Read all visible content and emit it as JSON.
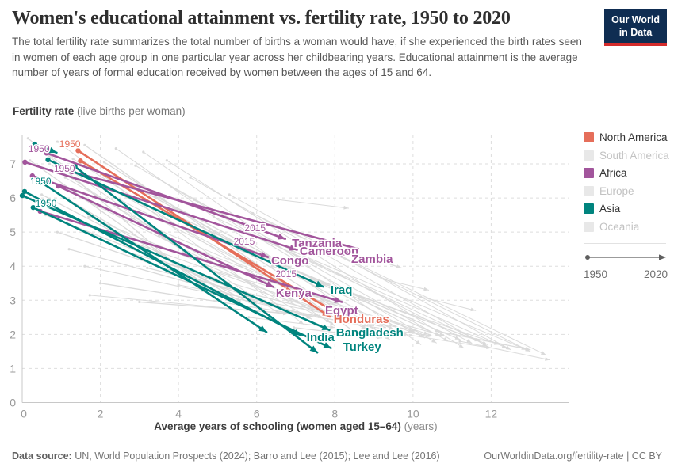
{
  "header": {
    "title": "Women's educational attainment vs. fertility rate, 1950 to 2020",
    "subtitle": "The total fertility rate summarizes the total number of births a woman would have, if she experienced the birth rates seen in women of each age group in one particular year across her childbearing years. Educational attainment is the average number of years of formal education received by women between the ages of 15 and 64.",
    "logo_line1": "Our World",
    "logo_line2": "in Data"
  },
  "palette": {
    "north_america": "#e56e5a",
    "africa": "#a2559c",
    "asia": "#00847e",
    "inactive_swatch": "#e8e8e8",
    "inactive_text": "#c2c2c2",
    "active_text": "#333333",
    "trail": "#dadada",
    "grid": "#dedede",
    "axis_line": "#c8c8c8",
    "axis_text": "#999999",
    "timeline": "#5f5f5f"
  },
  "legend": {
    "items": [
      {
        "label": "North America",
        "region": "north_america",
        "active": true
      },
      {
        "label": "South America",
        "region": "inactive",
        "active": false
      },
      {
        "label": "Africa",
        "region": "africa",
        "active": true
      },
      {
        "label": "Europe",
        "region": "inactive",
        "active": false
      },
      {
        "label": "Asia",
        "region": "asia",
        "active": true
      },
      {
        "label": "Oceania",
        "region": "inactive",
        "active": false
      }
    ],
    "timeline_start": "1950",
    "timeline_end": "2020"
  },
  "chart_data": {
    "type": "scatter",
    "title": "Women's educational attainment vs. fertility rate, 1950 to 2020",
    "ylabel": "Fertility rate",
    "ylabel_note": "(live births per woman)",
    "xlabel": "Average years of schooling (women aged 15–64)",
    "xlabel_note": "(years)",
    "xlim": [
      0,
      14
    ],
    "ylim": [
      0,
      7.86
    ],
    "xticks": [
      0,
      2,
      4,
      6,
      8,
      10,
      12
    ],
    "yticks": [
      0,
      1,
      2,
      3,
      4,
      5,
      6,
      7
    ],
    "grid": "dashed",
    "legend_position": "right",
    "series": [
      {
        "name": "Honduras",
        "region": "north_america",
        "points": [
          [
            1.43,
            7.39
          ],
          [
            7.87,
            2.52
          ]
        ]
      },
      {
        "name": "North America (unlabeled)",
        "region": "north_america",
        "points": [
          [
            1.49,
            7.09
          ],
          [
            8.05,
            2.62
          ],
          [
            7.99,
            2.33
          ]
        ]
      },
      {
        "name": "Tanzania",
        "region": "africa",
        "points": [
          [
            0.62,
            7.32
          ],
          [
            6.73,
            4.8
          ]
        ]
      },
      {
        "name": "Cameroon",
        "region": "africa",
        "points": [
          [
            0.07,
            7.05
          ],
          [
            7.03,
            4.48
          ]
        ]
      },
      {
        "name": "Zambia",
        "region": "africa",
        "points": [
          [
            1.27,
            6.77
          ],
          [
            8.55,
            4.52
          ],
          [
            8.16,
            4.32
          ]
        ]
      },
      {
        "name": "Congo",
        "region": "africa",
        "points": [
          [
            0.26,
            6.65
          ],
          [
            6.29,
            4.27
          ]
        ]
      },
      {
        "name": "Kenya",
        "region": "africa",
        "points": [
          [
            0.92,
            6.35
          ],
          [
            6.43,
            3.39
          ]
        ]
      },
      {
        "name": "Egypt",
        "region": "africa",
        "points": [
          [
            0.46,
            5.61
          ],
          [
            8.18,
            2.95
          ]
        ]
      },
      {
        "name": "Asia (stub)",
        "region": "asia",
        "points": [
          [
            0.32,
            7.58
          ],
          [
            0.88,
            7.33
          ]
        ]
      },
      {
        "name": "Iraq",
        "region": "asia",
        "points": [
          [
            0.66,
            7.12
          ],
          [
            7.7,
            3.4
          ]
        ]
      },
      {
        "name": "India",
        "region": "asia",
        "points": [
          [
            0.06,
            6.19
          ],
          [
            7.13,
            1.97
          ]
        ]
      },
      {
        "name": "Bangladesh",
        "region": "asia",
        "points": [
          [
            0.0,
            6.07
          ],
          [
            7.86,
            2.13
          ]
        ]
      },
      {
        "name": "Turkey",
        "region": "asia",
        "points": [
          [
            0.28,
            5.72
          ],
          [
            7.9,
            1.6
          ]
        ]
      },
      {
        "name": "Asia (unlabeled a)",
        "region": "asia",
        "points": [
          [
            1.35,
            6.92
          ],
          [
            7.55,
            1.47
          ]
        ]
      },
      {
        "name": "Asia (unlabeled b)",
        "region": "asia",
        "points": [
          [
            0.5,
            6.45
          ],
          [
            6.25,
            2.07
          ]
        ]
      }
    ],
    "country_labels": [
      {
        "text": "Tanzania",
        "region": "africa",
        "x": 6.9,
        "y": 4.68
      },
      {
        "text": "Cameroon",
        "region": "africa",
        "x": 7.1,
        "y": 4.45
      },
      {
        "text": "Zambia",
        "region": "africa",
        "x": 8.42,
        "y": 4.21
      },
      {
        "text": "Congo",
        "region": "africa",
        "x": 6.37,
        "y": 4.17
      },
      {
        "text": "Kenya",
        "region": "africa",
        "x": 6.49,
        "y": 3.22
      },
      {
        "text": "Iraq",
        "region": "asia",
        "x": 7.89,
        "y": 3.31
      },
      {
        "text": "Egypt",
        "region": "africa",
        "x": 7.75,
        "y": 2.71
      },
      {
        "text": "Honduras",
        "region": "north_america",
        "x": 7.97,
        "y": 2.45
      },
      {
        "text": "India",
        "region": "asia",
        "x": 7.28,
        "y": 1.92
      },
      {
        "text": "Bangladesh",
        "region": "asia",
        "x": 8.03,
        "y": 2.05
      },
      {
        "text": "Turkey",
        "region": "asia",
        "x": 8.21,
        "y": 1.64
      }
    ],
    "year_labels": [
      {
        "text": "1950",
        "region": "africa",
        "x": 0.43,
        "y": 7.44
      },
      {
        "text": "1950",
        "region": "north_america",
        "x": 1.22,
        "y": 7.58
      },
      {
        "text": "1950",
        "region": "africa",
        "x": 1.08,
        "y": 6.86
      },
      {
        "text": "1950",
        "region": "asia",
        "x": 0.47,
        "y": 6.49
      },
      {
        "text": "1950",
        "region": "asia",
        "x": 0.61,
        "y": 5.84
      },
      {
        "text": "2015",
        "region": "africa",
        "x": 5.96,
        "y": 5.12
      },
      {
        "text": "2015",
        "region": "africa",
        "x": 5.68,
        "y": 4.72
      },
      {
        "text": "2015",
        "region": "africa",
        "x": 6.75,
        "y": 3.77
      }
    ],
    "background_trails": [
      [
        0.15,
        7.75,
        4.6,
        3.4
      ],
      [
        0.4,
        7.5,
        6.0,
        2.9
      ],
      [
        0.9,
        7.65,
        7.2,
        2.3
      ],
      [
        1.6,
        7.55,
        8.6,
        2.0
      ],
      [
        2.4,
        7.45,
        9.4,
        1.85
      ],
      [
        3.1,
        7.35,
        10.2,
        1.7
      ],
      [
        0.2,
        7.1,
        5.0,
        3.2
      ],
      [
        0.7,
        7.0,
        6.6,
        2.6
      ],
      [
        1.3,
        7.15,
        8.0,
        2.25
      ],
      [
        2.1,
        7.05,
        9.0,
        2.05
      ],
      [
        2.9,
        6.95,
        10.6,
        1.75
      ],
      [
        3.7,
        7.1,
        11.3,
        1.6
      ],
      [
        0.3,
        6.55,
        5.6,
        2.95
      ],
      [
        1.1,
        6.6,
        7.4,
        2.45
      ],
      [
        1.9,
        6.5,
        8.8,
        2.15
      ],
      [
        2.7,
        6.45,
        9.8,
        1.95
      ],
      [
        3.5,
        6.55,
        10.9,
        1.8
      ],
      [
        4.3,
        6.6,
        11.9,
        1.65
      ],
      [
        0.5,
        6.1,
        6.2,
        2.7
      ],
      [
        1.5,
        6.0,
        7.9,
        2.35
      ],
      [
        2.5,
        5.95,
        9.1,
        2.1
      ],
      [
        3.4,
        6.05,
        10.3,
        1.9
      ],
      [
        4.4,
        5.95,
        11.5,
        1.75
      ],
      [
        5.3,
        6.1,
        12.5,
        1.55
      ],
      [
        0.6,
        5.5,
        6.6,
        2.8
      ],
      [
        1.7,
        5.45,
        8.2,
        2.4
      ],
      [
        2.8,
        5.4,
        9.5,
        2.15
      ],
      [
        3.9,
        5.5,
        10.7,
        1.95
      ],
      [
        4.9,
        5.45,
        11.9,
        1.7
      ],
      [
        5.9,
        5.55,
        13.0,
        1.5
      ],
      [
        0.9,
        5.0,
        7.0,
        2.65
      ],
      [
        2.2,
        4.95,
        8.7,
        2.3
      ],
      [
        3.5,
        4.9,
        10.0,
        2.05
      ],
      [
        4.7,
        5.0,
        11.2,
        1.85
      ],
      [
        5.8,
        4.95,
        12.4,
        1.6
      ],
      [
        6.8,
        5.05,
        13.4,
        1.4
      ],
      [
        1.2,
        4.5,
        7.3,
        2.55
      ],
      [
        2.6,
        4.45,
        9.0,
        2.25
      ],
      [
        4.1,
        4.4,
        10.4,
        2.0
      ],
      [
        5.5,
        4.5,
        11.7,
        1.8
      ],
      [
        6.9,
        4.45,
        12.9,
        1.55
      ],
      [
        1.6,
        4.0,
        7.7,
        2.5
      ],
      [
        3.2,
        3.95,
        9.3,
        2.2
      ],
      [
        4.8,
        3.9,
        10.8,
        1.95
      ],
      [
        6.4,
        4.0,
        12.2,
        1.7
      ],
      [
        2.0,
        3.5,
        8.4,
        2.35
      ],
      [
        4.0,
        3.45,
        10.1,
        2.1
      ],
      [
        1.73,
        3.15,
        6.8,
        2.6
      ],
      [
        3.0,
        2.95,
        7.6,
        2.55
      ],
      [
        6.55,
        5.95,
        8.35,
        5.7
      ],
      [
        7.6,
        4.55,
        9.2,
        4.15
      ],
      [
        8.9,
        4.25,
        9.7,
        3.95
      ],
      [
        9.3,
        3.6,
        10.4,
        3.3
      ],
      [
        10.2,
        3.1,
        11.6,
        2.7
      ],
      [
        6.95,
        2.2,
        9.2,
        1.9
      ],
      [
        8.2,
        2.35,
        10.5,
        1.95
      ],
      [
        9.8,
        2.0,
        12.0,
        1.6
      ],
      [
        10.6,
        2.1,
        13.0,
        1.55
      ],
      [
        11.2,
        1.8,
        13.5,
        1.25
      ],
      [
        5.8,
        2.5,
        8.0,
        2.2
      ]
    ]
  },
  "footer": {
    "datasource_label": "Data source:",
    "datasource_text": " UN, World Population Prospects (2024); Barro and Lee (2015); Lee and Lee (2016)",
    "right": "OurWorldinData.org/fertility-rate | CC BY"
  }
}
